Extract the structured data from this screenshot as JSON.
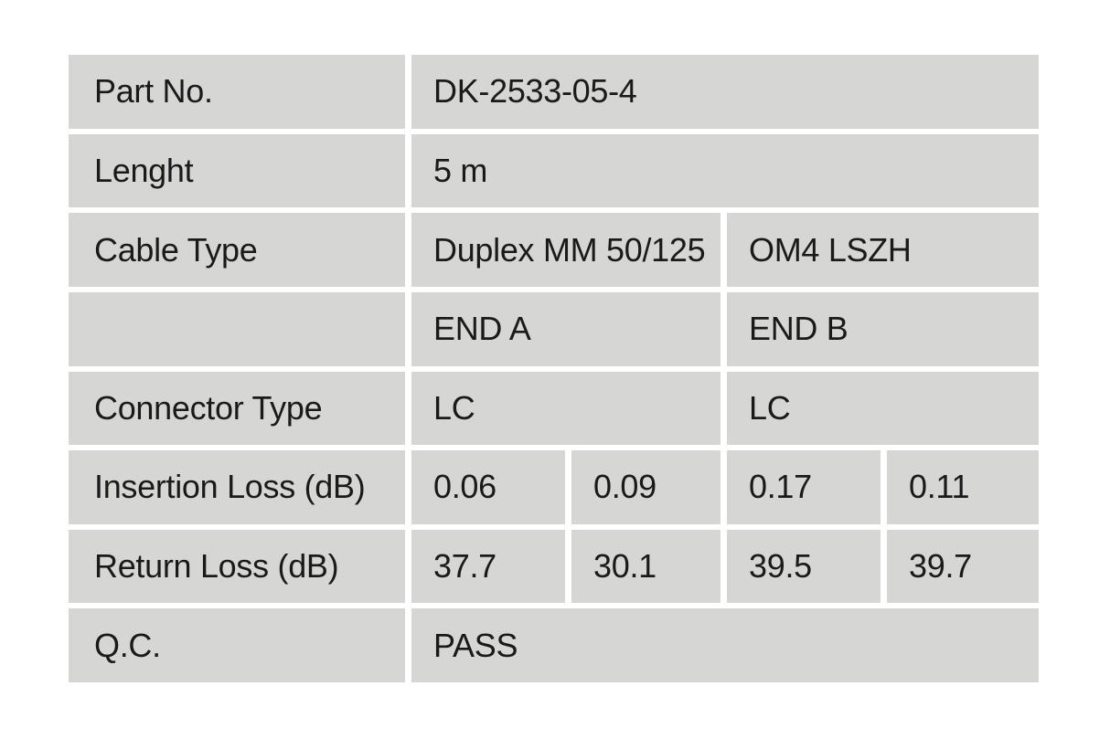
{
  "colors": {
    "cell_bg": "#d6d7d5",
    "page_bg": "#ffffff",
    "text": "#1a1a1a"
  },
  "table": {
    "rows": {
      "part_no": {
        "label": "Part No.",
        "value": "DK-2533-05-4"
      },
      "length": {
        "label": "Lenght",
        "value": "5 m"
      },
      "cable_type": {
        "label": "Cable Type",
        "end_a": "Duplex MM 50/125",
        "end_b": "OM4 LSZH"
      },
      "ends_header": {
        "label": "",
        "end_a": "END A",
        "end_b": "END B"
      },
      "connector_type": {
        "label": "Connector Type",
        "end_a": "LC",
        "end_b": "LC"
      },
      "insertion_loss": {
        "label": "Insertion Loss (dB)",
        "values": [
          "0.06",
          "0.09",
          "0.17",
          "0.11"
        ]
      },
      "return_loss": {
        "label": "Return Loss (dB)",
        "values": [
          "37.7",
          "30.1",
          "39.5",
          "39.7"
        ]
      },
      "qc": {
        "label": "Q.C.",
        "value": "PASS"
      }
    }
  }
}
